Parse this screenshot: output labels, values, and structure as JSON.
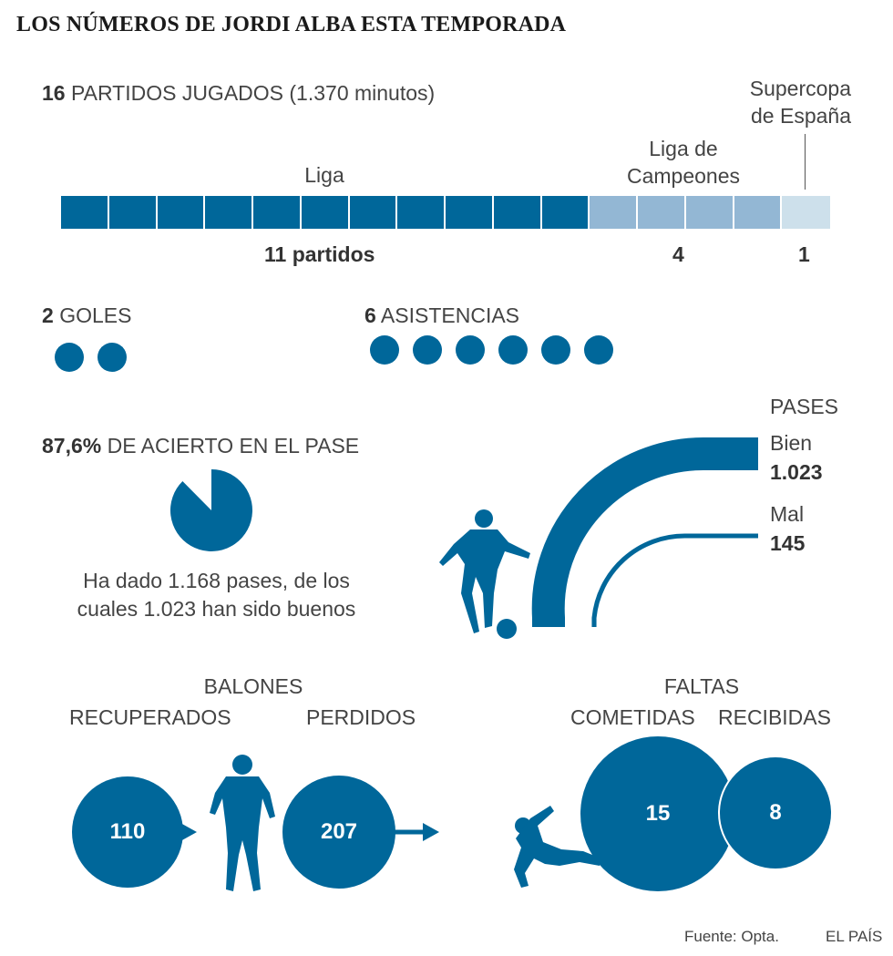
{
  "title": "LOS NÚMEROS DE JORDI ALBA ESTA TEMPORADA",
  "colors": {
    "dark": "#00679a",
    "mid": "#93b7d4",
    "light": "#cde0eb"
  },
  "matches": {
    "total": "16",
    "total_label": "PARTIDOS JUGADOS (1.370 minutos)",
    "liga_label": "Liga",
    "champions_label_1": "Liga de",
    "champions_label_2": "Campeones",
    "supercopa_label_1": "Supercopa",
    "supercopa_label_2": "de España",
    "liga_count": "11 partidos",
    "champions_count": "4",
    "supercopa_count": "1"
  },
  "goals": {
    "value": "2",
    "label": "GOLES"
  },
  "assists": {
    "value": "6",
    "label": "ASISTENCIAS"
  },
  "passing": {
    "pct": "87,6%",
    "pct_label": "DE ACIERTO EN EL PASE",
    "desc_1": "Ha dado 1.168 pases, de los",
    "desc_2": "cuales 1.023 han sido buenos",
    "header": "PASES",
    "good_label": "Bien",
    "good_value": "1.023",
    "bad_label": "Mal",
    "bad_value": "145"
  },
  "balls": {
    "header": "BALONES",
    "recovered_label": "RECUPERADOS",
    "lost_label": "PERDIDOS",
    "recovered": "110",
    "lost": "207"
  },
  "fouls": {
    "header": "FALTAS",
    "committed_label": "COMETIDAS",
    "received_label": "RECIBIDAS",
    "committed": "15",
    "received": "8"
  },
  "footer": {
    "source": "Fuente: Opta.",
    "brand": "EL PAÍS"
  },
  "chart_data": [
    {
      "type": "bar",
      "title": "PARTIDOS JUGADOS",
      "categories": [
        "Liga",
        "Liga de Campeones",
        "Supercopa de España"
      ],
      "values": [
        11,
        4,
        1
      ]
    },
    {
      "type": "pie",
      "title": "DE ACIERTO EN EL PASE",
      "categories": [
        "buenos",
        "malos"
      ],
      "values": [
        1023,
        145
      ],
      "percent": 87.6
    },
    {
      "type": "bar",
      "title": "PASES",
      "categories": [
        "Bien",
        "Mal"
      ],
      "values": [
        1023,
        145
      ]
    },
    {
      "type": "bar",
      "title": "BALONES",
      "categories": [
        "RECUPERADOS",
        "PERDIDOS"
      ],
      "values": [
        110,
        207
      ]
    },
    {
      "type": "bar",
      "title": "FALTAS",
      "categories": [
        "COMETIDAS",
        "RECIBIDAS"
      ],
      "values": [
        15,
        8
      ]
    },
    {
      "type": "bar",
      "categories": [
        "GOLES",
        "ASISTENCIAS"
      ],
      "values": [
        2,
        6
      ]
    }
  ]
}
